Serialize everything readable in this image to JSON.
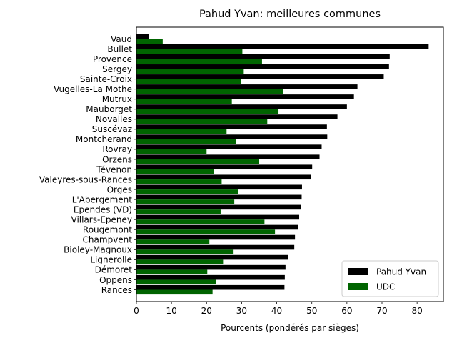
{
  "chart_data": {
    "type": "bar",
    "orientation": "horizontal",
    "title": "Pahud Yvan: meilleures communes",
    "xlabel": "Pourcents (pondérés par sièges)",
    "ylabel": "",
    "xlim": [
      0,
      87.5
    ],
    "xticks": [
      0,
      10,
      20,
      30,
      40,
      50,
      60,
      70,
      80
    ],
    "grid": false,
    "legend_position": "bottom-right",
    "categories": [
      "Vaud",
      "Bullet",
      "Provence",
      "Sergey",
      "Sainte-Croix",
      "Vugelles-La Mothe",
      "Mutrux",
      "Mauborget",
      "Novalles",
      "Suscévaz",
      "Montcherand",
      "Rovray",
      "Orzens",
      "Tévenon",
      "Valeyres-sous-Rances",
      "Orges",
      "L'Abergement",
      "Ependes (VD)",
      "Villars-Epeney",
      "Rougemont",
      "Champvent",
      "Bioley-Magnoux",
      "Lignerolle",
      "Démoret",
      "Oppens",
      "Rances"
    ],
    "series": [
      {
        "name": "Pahud Yvan",
        "color": "#000000",
        "values": [
          3.5,
          83.3,
          72.2,
          72.0,
          70.5,
          63.0,
          62.0,
          60.0,
          57.3,
          54.3,
          54.4,
          52.8,
          52.2,
          50.1,
          49.7,
          47.2,
          47.1,
          46.8,
          46.4,
          46.0,
          45.2,
          45.0,
          43.2,
          42.5,
          42.3,
          42.2
        ]
      },
      {
        "name": "UDC",
        "color": "#006400",
        "values": [
          7.5,
          30.2,
          35.8,
          30.6,
          29.8,
          41.9,
          27.2,
          40.5,
          37.3,
          25.7,
          28.3,
          20.0,
          35.0,
          22.0,
          24.3,
          29.0,
          27.9,
          24.0,
          36.5,
          39.5,
          20.8,
          27.7,
          24.7,
          20.2,
          22.6,
          21.7
        ]
      }
    ]
  }
}
